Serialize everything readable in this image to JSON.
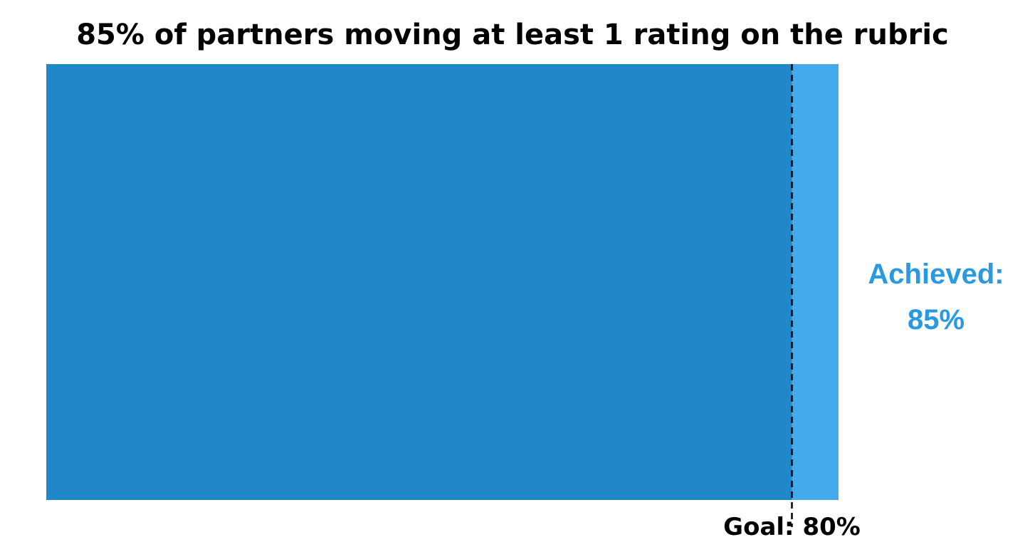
{
  "chart_data": {
    "type": "bar",
    "title": "85% of partners moving at least 1 rating on the rubric",
    "orientation": "horizontal",
    "xlim": [
      0,
      85
    ],
    "series": [
      {
        "values": [
          85
        ],
        "base_color": "#2088C8",
        "overflow_color": "#45AAEC"
      }
    ],
    "achieved": {
      "value": 85,
      "label_line1": "Achieved:",
      "label_line2": "85%",
      "color": "#2A9AE0"
    },
    "goal": {
      "value": 80,
      "label": "Goal: 80%",
      "line_style": "dashed",
      "line_color": "#000000"
    },
    "grid": false,
    "legend": "none"
  }
}
